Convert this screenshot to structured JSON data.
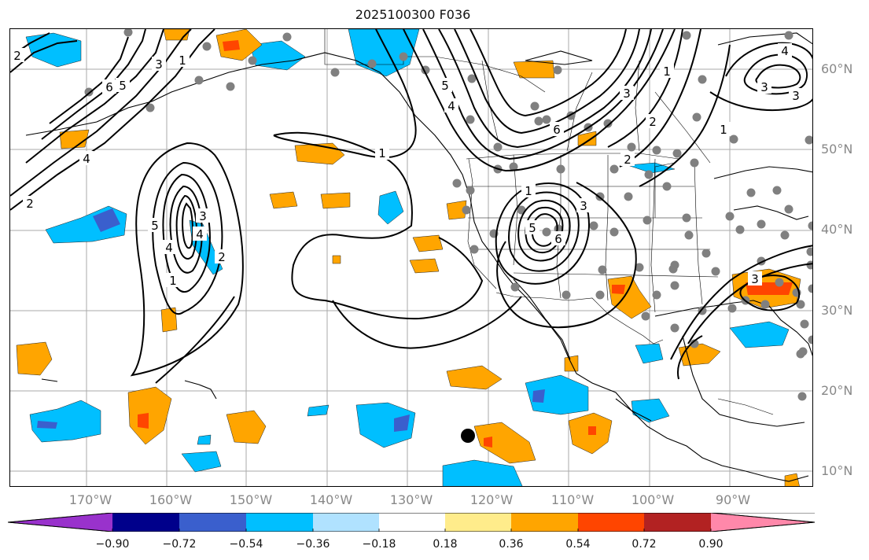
{
  "title": "2025100300 F036",
  "lat_labels": [
    "60°N",
    "50°N",
    "40°N",
    "30°N",
    "20°N",
    "10°N"
  ],
  "lon_labels": [
    "170°W",
    "160°W",
    "150°W",
    "140°W",
    "130°W",
    "120°W",
    "110°W",
    "100°W",
    "90°W"
  ],
  "contour_labels": [
    "6",
    "5",
    "4",
    "3",
    "2",
    "1",
    "1",
    "5",
    "4",
    "3",
    "2",
    "4",
    "2",
    "5",
    "6",
    "1",
    "3",
    "2",
    "4",
    "5",
    "3",
    "1",
    "3",
    "2",
    "1",
    "6",
    "4",
    "3",
    "1",
    "3"
  ],
  "colorbar": {
    "tick_labels": [
      "−0.90",
      "−0.72",
      "−0.54",
      "−0.36",
      "−0.18",
      "0.18",
      "0.36",
      "0.54",
      "0.72",
      "0.90"
    ],
    "colors": [
      "#9932CC",
      "#00008B",
      "#3A5FCD",
      "#00BFFF",
      "#B0E2FF",
      "#FFFFFF",
      "#FFEC8B",
      "#FFA500",
      "#FF4500",
      "#B22222",
      "#FF88AA"
    ]
  }
}
